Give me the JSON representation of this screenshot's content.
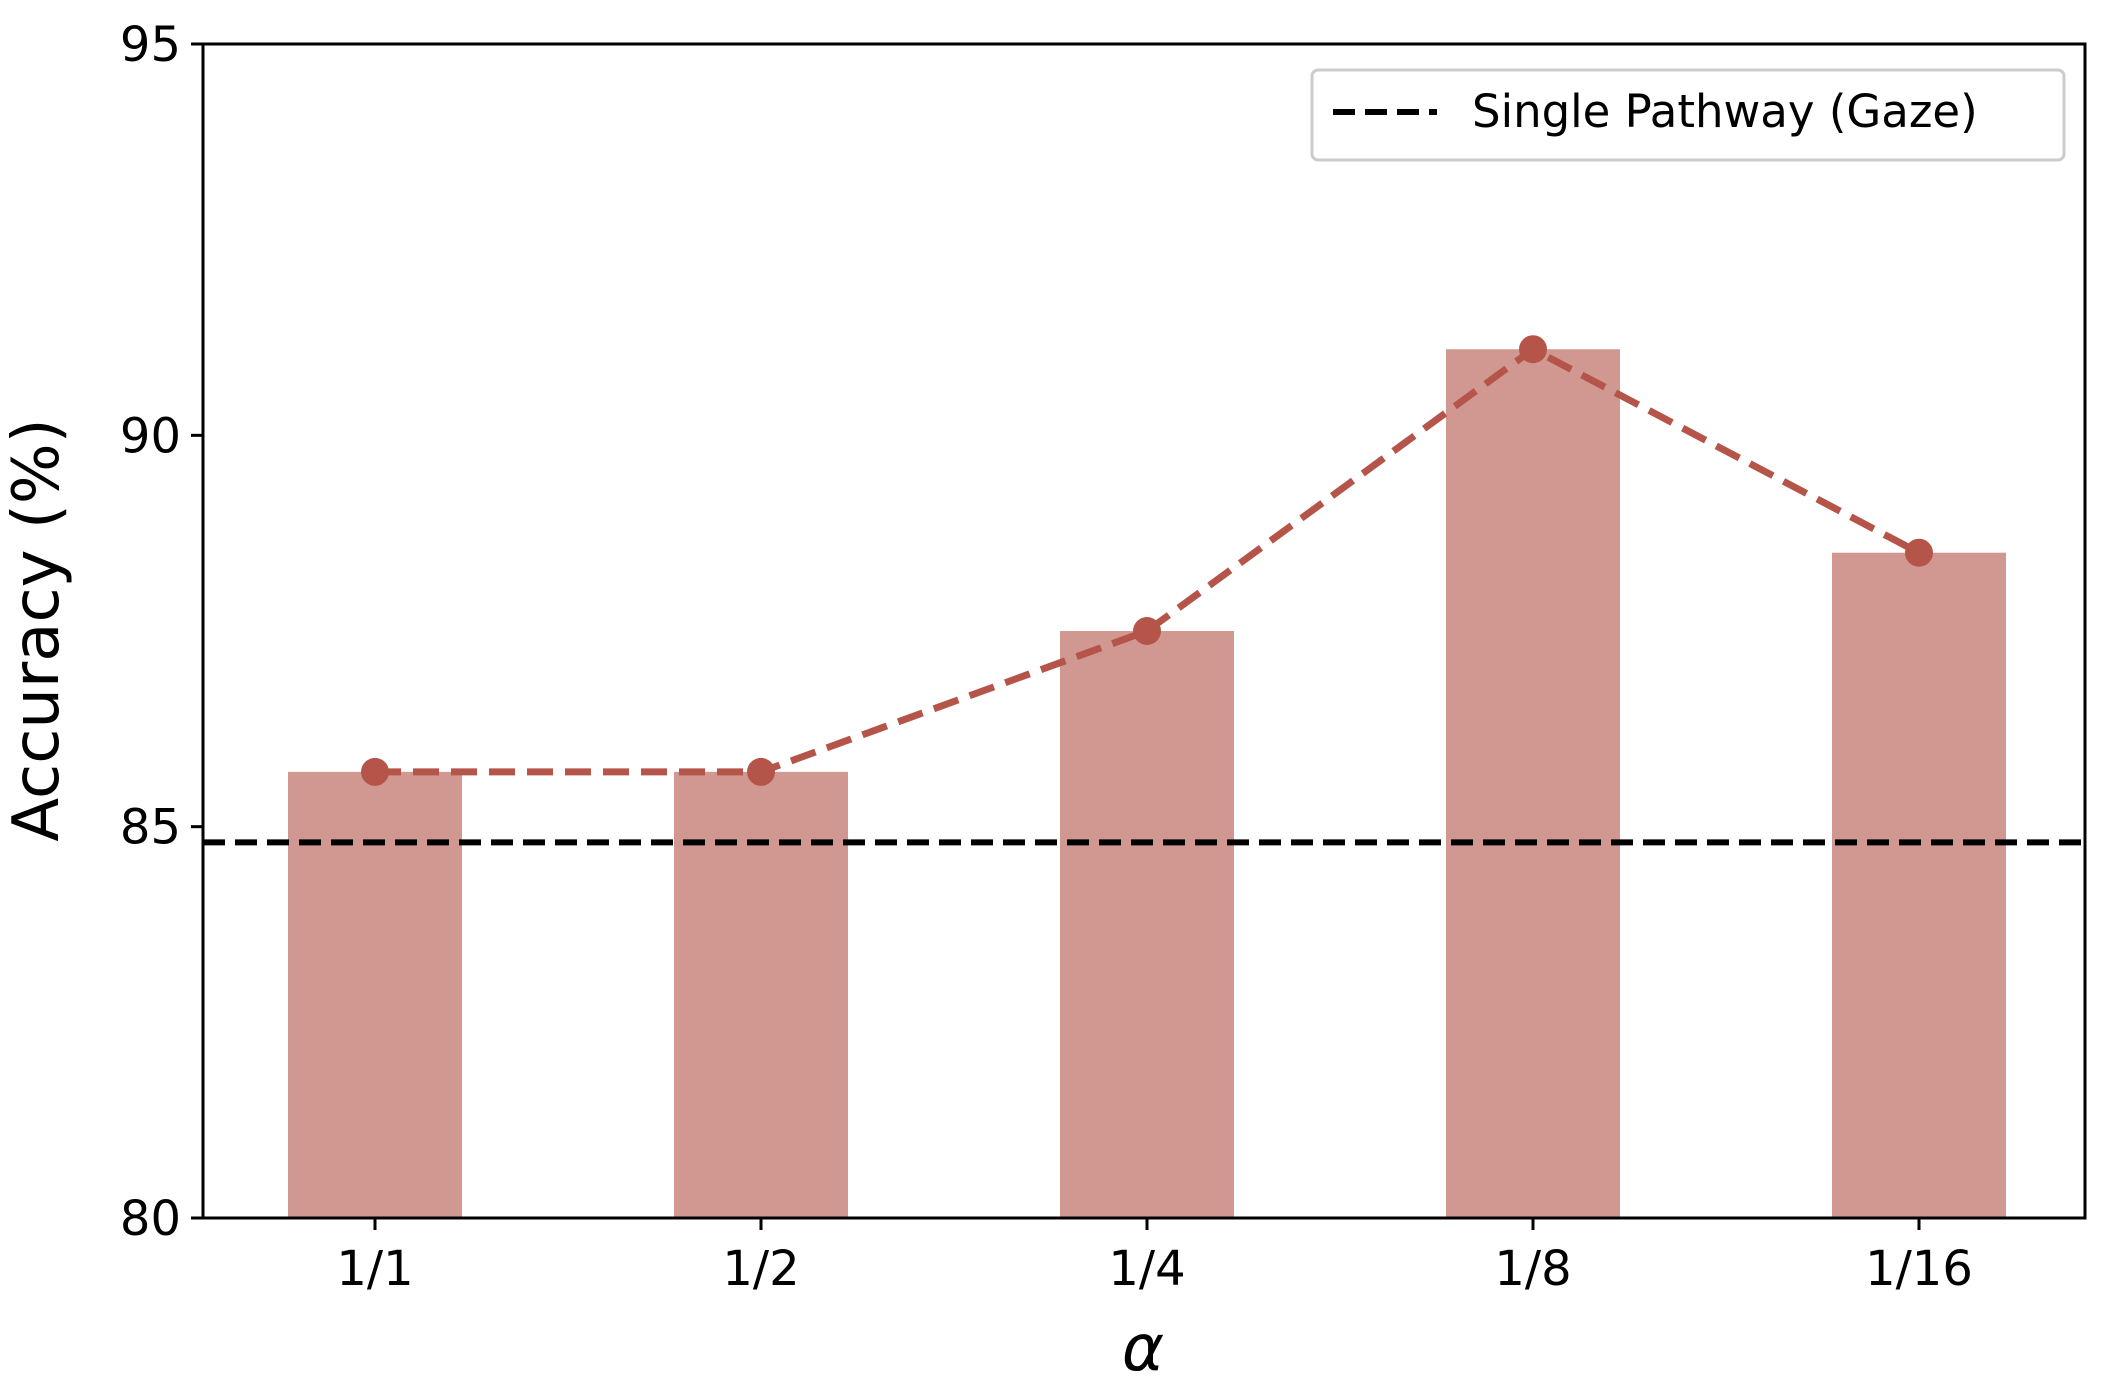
{
  "chart_data": {
    "type": "bar",
    "categories": [
      "1/1",
      "1/2",
      "1/4",
      "1/8",
      "1/16"
    ],
    "values": [
      85.7,
      85.7,
      87.5,
      91.1,
      88.5
    ],
    "line_values": [
      85.7,
      85.7,
      87.5,
      91.1,
      88.5
    ],
    "reference_line": {
      "name": "Single Pathway (Gaze)",
      "value": 84.8
    },
    "title": "",
    "xlabel": "α",
    "ylabel": "Accuracy (%)",
    "ylim": [
      80,
      95
    ],
    "yticks": [
      "80",
      "85",
      "90",
      "95"
    ],
    "grid": false,
    "legend_position": "top-right",
    "colors": {
      "bar": "#d09891",
      "line": "#b5554a",
      "reference": "#000000",
      "legend_border": "#cccccc"
    }
  }
}
